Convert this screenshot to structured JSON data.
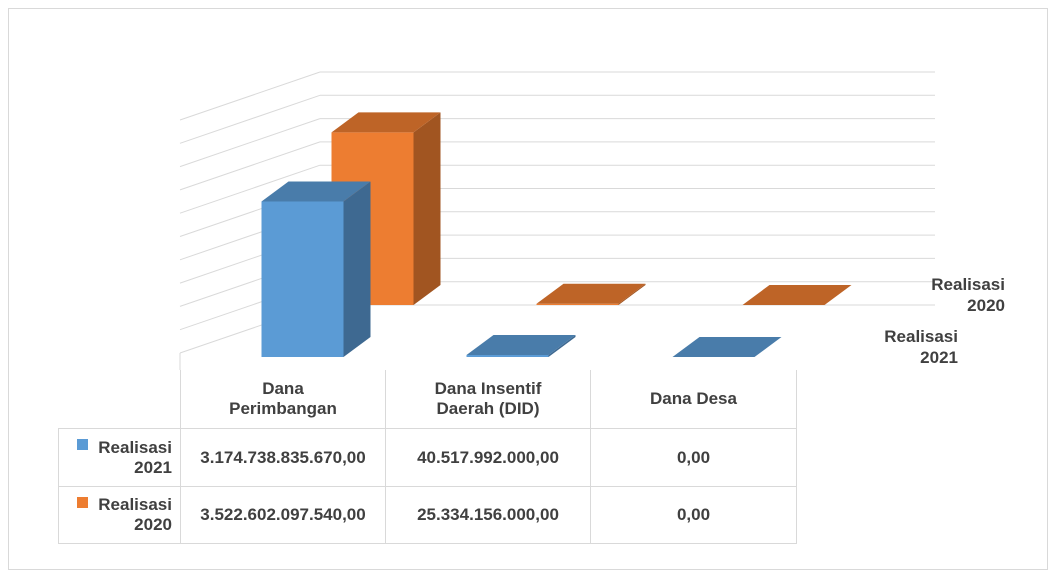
{
  "chart_data": {
    "type": "bar3d",
    "categories": [
      "Dana Perimbangan",
      "Dana Insentif Daerah (DID)",
      "Dana Desa"
    ],
    "series": [
      {
        "name": "Realisasi 2021",
        "color": "#5b9bd5",
        "values": [
          3174738835670,
          40517992000,
          0
        ],
        "value_labels": [
          "3.174.738.835.670,00",
          "40.517.992.000,00",
          "0,00"
        ]
      },
      {
        "name": "Realisasi 2020",
        "color": "#ed7d31",
        "values": [
          3522602097540,
          25334156000,
          0
        ],
        "value_labels": [
          "3.522.602.097.540,00",
          "25.334.156.000,00",
          "0,00"
        ]
      }
    ],
    "ylim": [
      0,
      5000000000000
    ],
    "yticks": [
      0,
      500000000000,
      1000000000000,
      1500000000000,
      2000000000000,
      2500000000000,
      3000000000000,
      3500000000000,
      4000000000000,
      4500000000000,
      5000000000000
    ],
    "grid": true
  }
}
